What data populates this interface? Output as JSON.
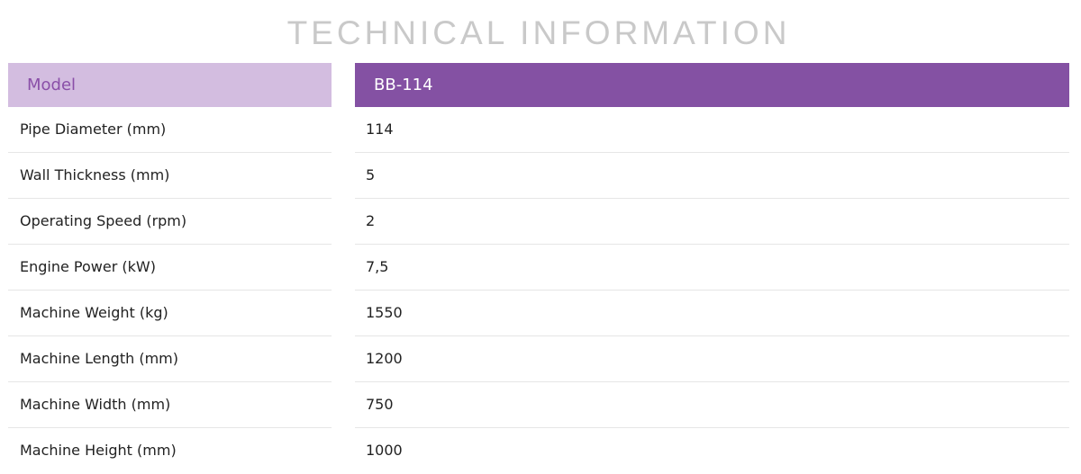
{
  "title": "TECHNICAL INFORMATION",
  "header": {
    "label": "Model",
    "value": "BB-114"
  },
  "rows": [
    {
      "label": "Pipe Diameter (mm)",
      "value": "114"
    },
    {
      "label": "Wall Thickness (mm)",
      "value": "5"
    },
    {
      "label": "Operating Speed (rpm)",
      "value": "2"
    },
    {
      "label": "Engine Power (kW)",
      "value": "7,5"
    },
    {
      "label": "Machine Weight (kg)",
      "value": "1550"
    },
    {
      "label": "Machine Length (mm)",
      "value": "1200"
    },
    {
      "label": "Machine Width (mm)",
      "value": "750"
    },
    {
      "label": "Machine Height (mm)",
      "value": "1000"
    }
  ],
  "colors": {
    "header_left_bg": "#d3bde0",
    "header_left_text": "#8a4fa8",
    "header_right_bg": "#8451a3",
    "title_text": "#c9c9c9"
  }
}
